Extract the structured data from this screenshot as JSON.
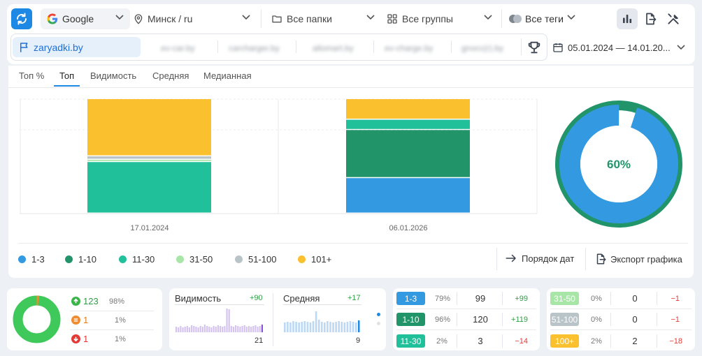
{
  "toolbar": {
    "search_engine": "Google",
    "region": "Минск / ru",
    "folders": "Все папки",
    "groups": "Все группы",
    "tags": "Все теги"
  },
  "sites": {
    "active": "zaryadki.by",
    "others": [
      "ev-car.by",
      "carcharger.by",
      "allomart.by",
      "ev-charge.by",
      "gnocc(r).by"
    ]
  },
  "date_range": "05.01.2024 — 14.01.20...",
  "tabs": [
    "Топ %",
    "Топ",
    "Видимость",
    "Средняя",
    "Медианная"
  ],
  "active_tab": "Топ",
  "colors": {
    "c1_3": "#3399e0",
    "c1_10": "#22946a",
    "c11_30": "#20c09a",
    "c31_50": "#a8e6a8",
    "c51_100": "#b8c4c8",
    "c101": "#fbc02d"
  },
  "chart_data": [
    {
      "type": "bar",
      "stacked": true,
      "categories": [
        "17.01.2024",
        "06.01.2026"
      ],
      "series": [
        {
          "name": "1-3",
          "values": [
            0,
            31
          ]
        },
        {
          "name": "1-10",
          "values": [
            0,
            42
          ]
        },
        {
          "name": "11-30",
          "values": [
            45,
            9
          ]
        },
        {
          "name": "31-50",
          "values": [
            2,
            0
          ]
        },
        {
          "name": "51-100",
          "values": [
            3,
            0
          ]
        },
        {
          "name": "101+",
          "values": [
            50,
            18
          ]
        }
      ]
    },
    {
      "type": "pie",
      "center_label": "60%",
      "outer_ring_percent": 100,
      "inner_blue_percent": 95
    }
  ],
  "legend": [
    "1-3",
    "1-10",
    "11-30",
    "31-50",
    "51-100",
    "101+"
  ],
  "actions": {
    "date_order": "Порядок дат",
    "export": "Экспорт графика"
  },
  "summary": {
    "rows": [
      {
        "count": "123",
        "pct": "98%"
      },
      {
        "count": "1",
        "pct": "1%"
      },
      {
        "count": "1",
        "pct": "1%"
      }
    ]
  },
  "visibility": {
    "label": "Видимость",
    "delta": "+90",
    "value": "21"
  },
  "average": {
    "label": "Средняя",
    "delta": "+17",
    "value": "9"
  },
  "ranges": [
    {
      "label": "1-3",
      "pct": "79%",
      "count": "99",
      "delta": "+99"
    },
    {
      "label": "1-10",
      "pct": "96%",
      "count": "120",
      "delta": "+119"
    },
    {
      "label": "11-30",
      "pct": "2%",
      "count": "3",
      "delta": "−14"
    },
    {
      "label": "31-50",
      "pct": "0%",
      "count": "0",
      "delta": "−1"
    },
    {
      "label": "51-100",
      "pct": "0%",
      "count": "0",
      "delta": "−1"
    },
    {
      "label": "100+",
      "pct": "2%",
      "count": "2",
      "delta": "−18"
    }
  ]
}
